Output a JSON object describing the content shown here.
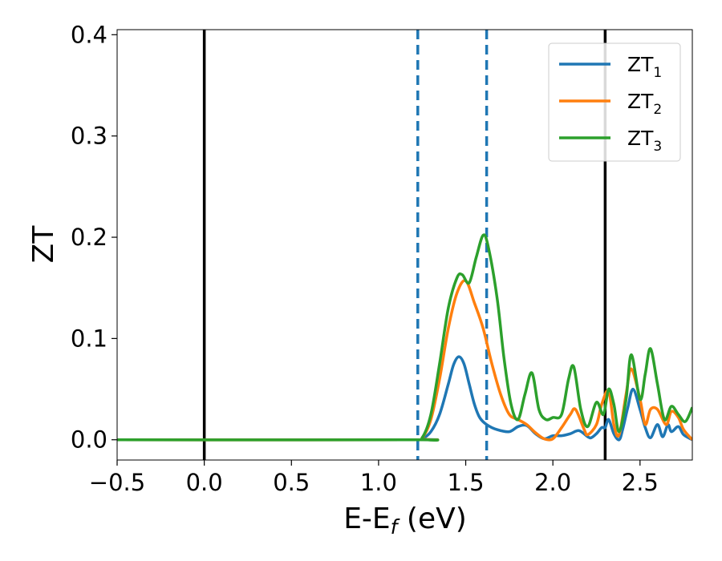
{
  "chart_data": {
    "type": "line",
    "xlabel": "E-E",
    "xlabel_subscript": "f",
    "xlabel_unit": " (eV)",
    "ylabel": "ZT",
    "xlim": [
      -0.5,
      2.8
    ],
    "ylim": [
      -0.02,
      0.405
    ],
    "xticks": [
      -0.5,
      0.0,
      0.5,
      1.0,
      1.5,
      2.0,
      2.5
    ],
    "xtick_labels": [
      "−0.5",
      "0.0",
      "0.5",
      "1.0",
      "1.5",
      "2.0",
      "2.5"
    ],
    "yticks": [
      0.0,
      0.1,
      0.2,
      0.3,
      0.4
    ],
    "ytick_labels": [
      "0.0",
      "0.1",
      "0.2",
      "0.3",
      "0.4"
    ],
    "grid": false,
    "legend_position": "top-right",
    "vertical_lines": [
      {
        "x": 0.0,
        "style": "solid",
        "color": "#000000"
      },
      {
        "x": 2.3,
        "style": "solid",
        "color": "#000000"
      },
      {
        "x": 1.225,
        "style": "dashed",
        "color": "#1f77b4"
      },
      {
        "x": 1.62,
        "style": "dashed",
        "color": "#1f77b4"
      }
    ],
    "series": [
      {
        "name": "ZT",
        "subscript": "1",
        "color": "#1f77b4",
        "x": [
          -0.5,
          1.2,
          1.25,
          1.3,
          1.35,
          1.4,
          1.43,
          1.46,
          1.49,
          1.52,
          1.55,
          1.58,
          1.62,
          1.68,
          1.75,
          1.8,
          1.85,
          1.9,
          1.95,
          2.0,
          2.05,
          2.1,
          2.15,
          2.2,
          2.22,
          2.25,
          2.28,
          2.3,
          2.32,
          2.35,
          2.38,
          2.4,
          2.43,
          2.46,
          2.5,
          2.53,
          2.56,
          2.6,
          2.63,
          2.66,
          2.68,
          2.72,
          2.75,
          2.8
        ],
        "y": [
          0.0,
          0.0,
          0.001,
          0.008,
          0.025,
          0.055,
          0.074,
          0.082,
          0.075,
          0.055,
          0.035,
          0.022,
          0.015,
          0.01,
          0.008,
          0.013,
          0.014,
          0.006,
          0.001,
          0.004,
          0.004,
          0.006,
          0.009,
          0.003,
          0.002,
          0.006,
          0.012,
          0.012,
          0.02,
          0.006,
          0.0,
          0.01,
          0.032,
          0.05,
          0.03,
          0.012,
          0.002,
          0.015,
          0.003,
          0.015,
          0.008,
          0.013,
          0.005,
          0.0
        ]
      },
      {
        "name": "ZT",
        "subscript": "2",
        "color": "#ff7f0e",
        "x": [
          -0.5,
          1.2,
          1.25,
          1.3,
          1.35,
          1.4,
          1.45,
          1.5,
          1.55,
          1.6,
          1.65,
          1.7,
          1.75,
          1.8,
          1.85,
          1.9,
          1.95,
          2.0,
          2.05,
          2.1,
          2.13,
          2.18,
          2.2,
          2.25,
          2.28,
          2.32,
          2.35,
          2.38,
          2.42,
          2.45,
          2.5,
          2.53,
          2.56,
          2.6,
          2.65,
          2.68,
          2.72,
          2.75,
          2.8
        ],
        "y": [
          0.0,
          0.0,
          0.002,
          0.02,
          0.06,
          0.11,
          0.145,
          0.157,
          0.135,
          0.11,
          0.075,
          0.045,
          0.025,
          0.02,
          0.015,
          0.007,
          0.001,
          0.001,
          0.012,
          0.025,
          0.03,
          0.01,
          0.005,
          0.015,
          0.035,
          0.048,
          0.015,
          0.005,
          0.045,
          0.07,
          0.04,
          0.015,
          0.03,
          0.03,
          0.015,
          0.028,
          0.022,
          0.01,
          0.0
        ]
      },
      {
        "name": "ZT",
        "subscript": "3",
        "color": "#2ca02c",
        "x": [
          -0.5,
          1.2,
          1.25,
          1.3,
          1.35,
          1.4,
          1.45,
          1.48,
          1.52,
          1.56,
          1.6,
          1.63,
          1.68,
          1.72,
          1.76,
          1.8,
          1.84,
          1.88,
          1.92,
          1.96,
          2.0,
          2.05,
          2.09,
          2.12,
          2.16,
          2.2,
          2.25,
          2.29,
          2.32,
          2.35,
          2.38,
          2.42,
          2.45,
          2.5,
          2.53,
          2.56,
          2.6,
          2.64,
          2.68,
          2.72,
          2.76,
          2.8
        ],
        "y": [
          0.0,
          0.0,
          0.002,
          0.025,
          0.075,
          0.13,
          0.16,
          0.163,
          0.155,
          0.18,
          0.202,
          0.19,
          0.14,
          0.08,
          0.035,
          0.02,
          0.045,
          0.066,
          0.03,
          0.02,
          0.022,
          0.025,
          0.06,
          0.072,
          0.03,
          0.013,
          0.037,
          0.025,
          0.05,
          0.035,
          0.008,
          0.04,
          0.084,
          0.04,
          0.065,
          0.09,
          0.055,
          0.02,
          0.033,
          0.025,
          0.018,
          0.032
        ]
      }
    ]
  }
}
